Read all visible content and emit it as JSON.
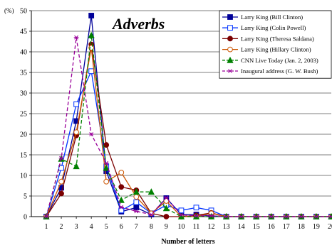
{
  "chart_data": {
    "type": "line",
    "title": "Adverbs",
    "unit_label": "(%)",
    "xlabel": "Number of letters",
    "ylabel": "",
    "categories": [
      1,
      2,
      3,
      4,
      5,
      6,
      7,
      8,
      9,
      10,
      11,
      12,
      13,
      14,
      15,
      16,
      17,
      18,
      19,
      20
    ],
    "ylim": [
      0,
      50
    ],
    "yticks": [
      0,
      5,
      10,
      15,
      20,
      25,
      30,
      35,
      40,
      45,
      50
    ],
    "grid": "horizontal",
    "legend_position": "top-right",
    "series": [
      {
        "name": "Larry King (Bill Clinton)",
        "color": "#000099",
        "marker": "square-filled",
        "dash": "solid",
        "values": [
          0,
          7,
          23.2,
          48.8,
          11,
          1.2,
          2.2,
          0.5,
          4.5,
          0.5,
          0.5,
          0.2,
          0,
          0,
          0,
          0,
          0,
          0,
          0,
          0
        ]
      },
      {
        "name": "Larry King (Colin Powell)",
        "color": "#0033ff",
        "marker": "square-open",
        "dash": "solid",
        "values": [
          0,
          11.8,
          27.3,
          35.3,
          12.2,
          1.5,
          3.5,
          0.8,
          2.8,
          1.5,
          2.2,
          1.5,
          0,
          0,
          0,
          0,
          0,
          0,
          0,
          0
        ]
      },
      {
        "name": "Larry King (Theresa Saldana)",
        "color": "#7b0000",
        "marker": "circle-filled",
        "dash": "solid",
        "values": [
          0,
          5.6,
          19.7,
          41.8,
          17.4,
          7.2,
          6.4,
          0.8,
          0,
          0,
          0.3,
          0.9,
          0,
          0,
          0,
          0,
          0,
          0,
          0,
          0
        ]
      },
      {
        "name": "Larry King (Hillary Clinton)",
        "color": "#cc5500",
        "marker": "circle-open",
        "dash": "solid",
        "values": [
          0,
          8.5,
          20.5,
          41,
          8.5,
          10.7,
          4.8,
          0.8,
          3.8,
          0,
          0,
          0.8,
          0,
          0,
          0,
          0,
          0,
          0,
          0,
          0
        ]
      },
      {
        "name": "CNN Live Today (Jan. 2, 2003)",
        "color": "#008000",
        "marker": "triangle-filled",
        "dash": "dash",
        "values": [
          0,
          14,
          12.2,
          44,
          11.8,
          4,
          6,
          6,
          2,
          0,
          0,
          0,
          0,
          0,
          0,
          0,
          0,
          0,
          0,
          0
        ]
      },
      {
        "name": "Inaugural address (G. W. Bush)",
        "color": "#990099",
        "marker": "star",
        "dash": "dash",
        "values": [
          0,
          14.2,
          43.5,
          20,
          13,
          2.3,
          1.3,
          0.5,
          4.6,
          0.4,
          0.2,
          0.2,
          0,
          0,
          0,
          0,
          0,
          0,
          0,
          0
        ]
      }
    ]
  }
}
